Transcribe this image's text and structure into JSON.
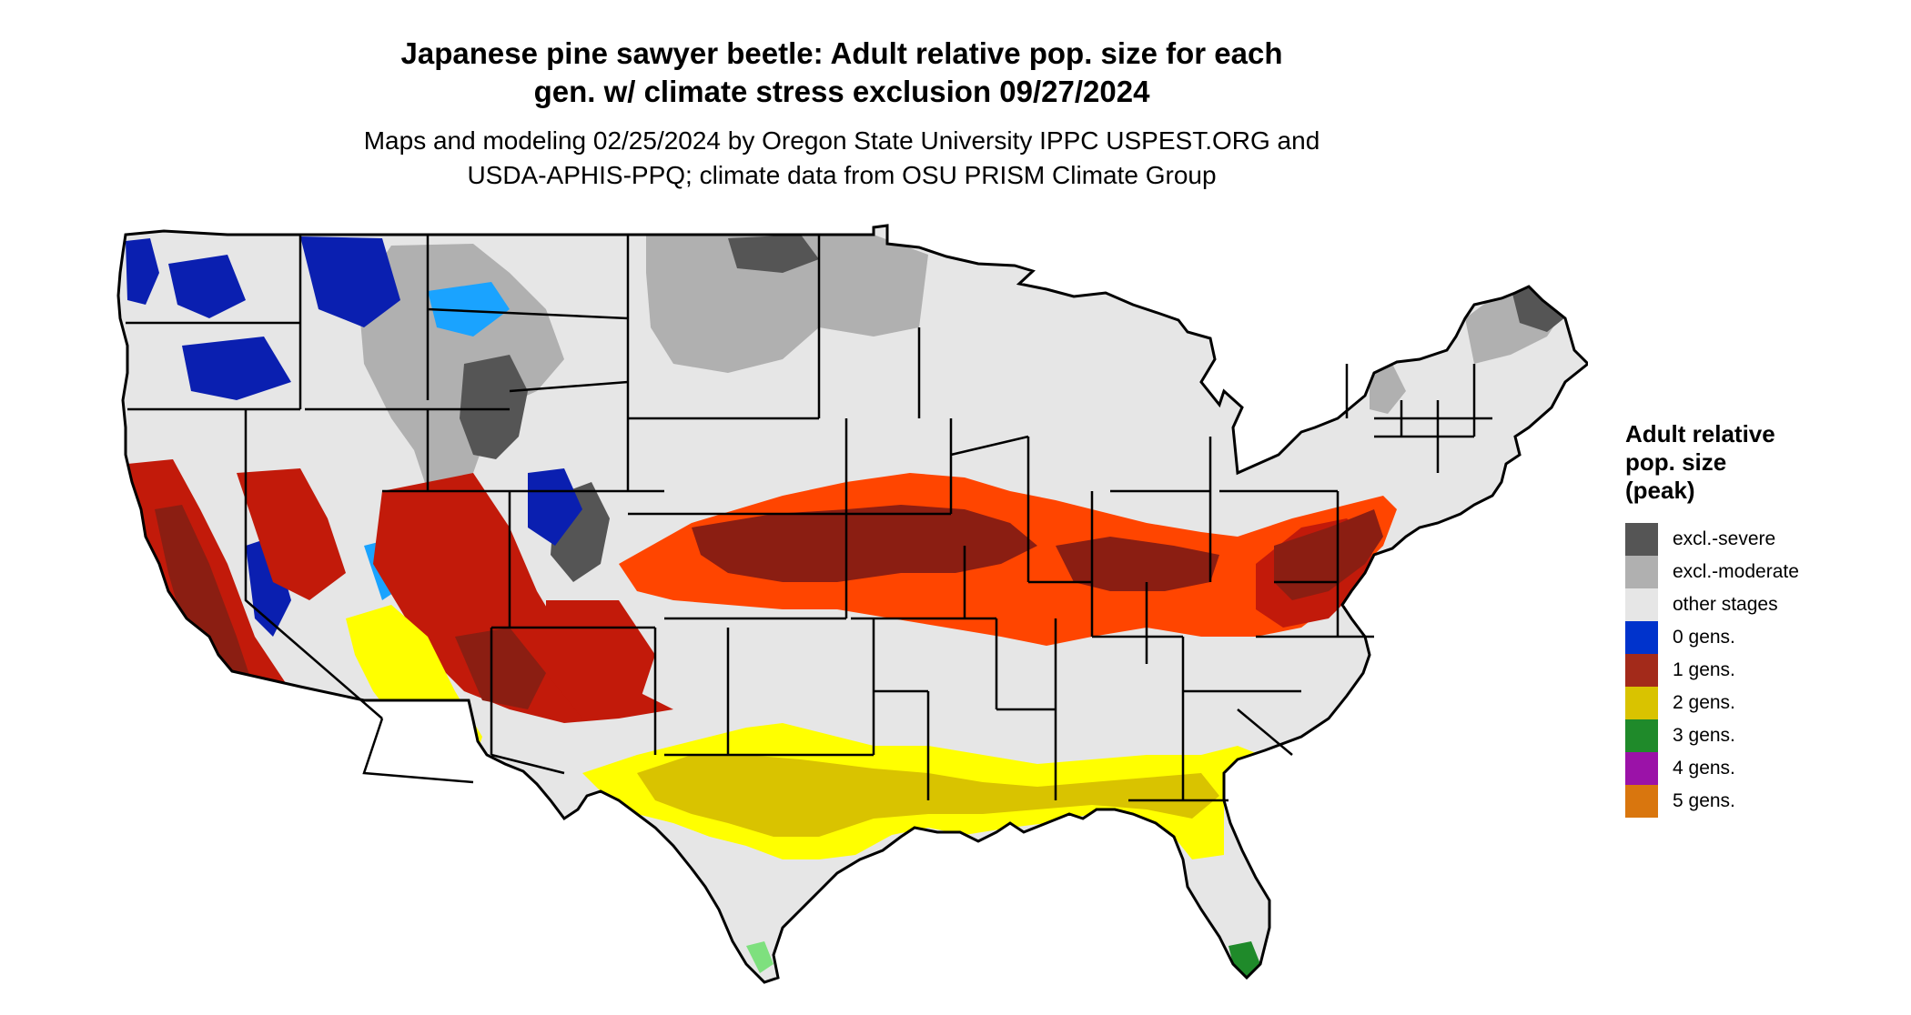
{
  "header": {
    "title_line1": "Japanese pine sawyer beetle: Adult relative pop. size for each",
    "title_line2": "gen. w/ climate stress exclusion 09/27/2024",
    "subtitle_line1": "Maps and modeling 02/25/2024 by Oregon State University IPPC USPEST.ORG and",
    "subtitle_line2": "USDA-APHIS-PPQ; climate data from OSU PRISM Climate Group"
  },
  "legend": {
    "title_line1": "Adult relative",
    "title_line2": "pop. size",
    "title_line3": "(peak)",
    "items": [
      {
        "label": "excl.-severe",
        "color": "#555555"
      },
      {
        "label": "excl.-moderate",
        "color": "#b0b0b0"
      },
      {
        "label": "other stages",
        "color": "#e6e6e6"
      },
      {
        "label": "0 gens.",
        "color": "#0033cc"
      },
      {
        "label": "1 gens.",
        "color": "#a32a1a"
      },
      {
        "label": "2 gens.",
        "color": "#d9c300"
      },
      {
        "label": "3 gens.",
        "color": "#1f8a2a"
      },
      {
        "label": "4 gens.",
        "color": "#9b12a8"
      },
      {
        "label": "5 gens.",
        "color": "#d9760e"
      }
    ]
  },
  "map_colors": {
    "base": "#e6e6e6",
    "border": "#000000",
    "orange": "#ff4500",
    "red_dark": "#8b1e12",
    "red": "#c21a0a",
    "yellow_bright": "#ffff00",
    "yellow": "#d9c300",
    "blue_dark": "#0a1fb0",
    "blue_light": "#1aa3ff",
    "gray_dark": "#555555",
    "gray_mod": "#b0b0b0",
    "green_light": "#7ee07e",
    "green": "#1f8a2a"
  }
}
